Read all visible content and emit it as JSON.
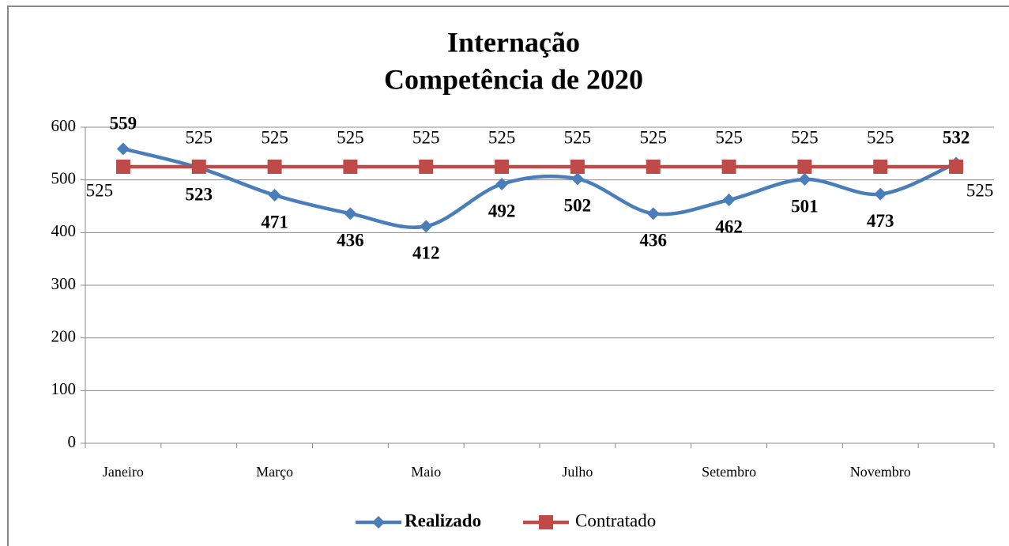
{
  "chart_data": {
    "type": "line",
    "title": [
      "Internação",
      "Competência de 2020"
    ],
    "categories": [
      "Janeiro",
      null,
      "Março",
      null,
      "Maio",
      null,
      "Julho",
      null,
      "Setembro",
      null,
      "Novembro",
      null
    ],
    "series": [
      {
        "name": "Realizado",
        "color": "#4a7ebb",
        "marker": "diamond",
        "smooth": true,
        "values": [
          559,
          523,
          471,
          436,
          412,
          492,
          502,
          436,
          462,
          501,
          473,
          532
        ]
      },
      {
        "name": "Contratado",
        "color": "#be4b48",
        "marker": "square",
        "smooth": false,
        "values": [
          525,
          525,
          525,
          525,
          525,
          525,
          525,
          525,
          525,
          525,
          525,
          525
        ]
      }
    ],
    "ylim": [
      0,
      600
    ],
    "yticks": [
      0,
      100,
      200,
      300,
      400,
      500,
      600
    ],
    "grid": true,
    "legend": "bottom"
  }
}
